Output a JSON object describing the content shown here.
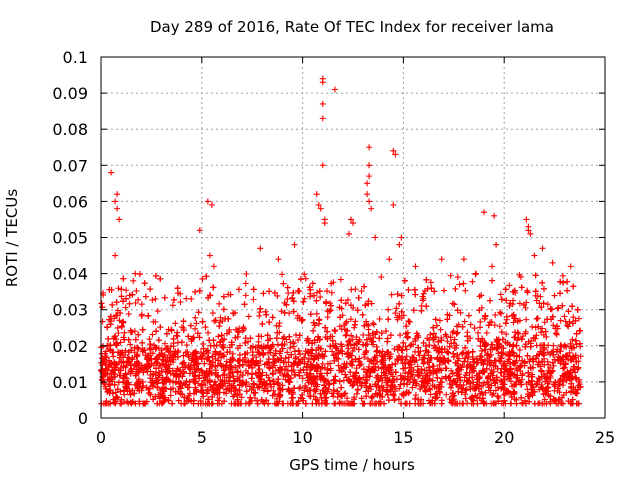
{
  "chart_data": {
    "type": "scatter",
    "title": "Day 289 of 2016, Rate Of TEC Index for receiver lama",
    "xlabel": "GPS time / hours",
    "ylabel": "ROTI / TECUs",
    "xlim": [
      0,
      25
    ],
    "ylim": [
      0,
      0.1
    ],
    "grid": true,
    "marker": "+",
    "color": "#ff0000",
    "xticks": [
      0,
      5,
      10,
      15,
      20,
      25
    ],
    "xtick_labels": [
      "0",
      "5",
      "10",
      "15",
      "20",
      "25"
    ],
    "yticks": [
      0,
      0.01,
      0.02,
      0.03,
      0.04,
      0.05,
      0.06,
      0.07,
      0.08,
      0.09,
      0.1
    ],
    "ytick_labels": [
      "0",
      "0.01",
      "0.02",
      "0.03",
      "0.04",
      "0.05",
      "0.06",
      "0.07",
      "0.08",
      "0.09",
      "0.1"
    ],
    "x_range_of_data": [
      0,
      23.8
    ],
    "dense_band": {
      "low": 0.004,
      "high": 0.03,
      "typical": 0.013
    },
    "outliers": [
      {
        "x": 0.5,
        "y": 0.068
      },
      {
        "x": 0.7,
        "y": 0.06
      },
      {
        "x": 0.8,
        "y": 0.062
      },
      {
        "x": 0.8,
        "y": 0.058
      },
      {
        "x": 0.9,
        "y": 0.055
      },
      {
        "x": 0.7,
        "y": 0.045
      },
      {
        "x": 1.7,
        "y": 0.04
      },
      {
        "x": 1.6,
        "y": 0.038
      },
      {
        "x": 4.9,
        "y": 0.052
      },
      {
        "x": 5.3,
        "y": 0.06
      },
      {
        "x": 5.5,
        "y": 0.059
      },
      {
        "x": 5.4,
        "y": 0.045
      },
      {
        "x": 5.6,
        "y": 0.042
      },
      {
        "x": 7.9,
        "y": 0.047
      },
      {
        "x": 8.8,
        "y": 0.044
      },
      {
        "x": 9.6,
        "y": 0.048
      },
      {
        "x": 10.7,
        "y": 0.062
      },
      {
        "x": 10.8,
        "y": 0.059
      },
      {
        "x": 10.9,
        "y": 0.058
      },
      {
        "x": 11.0,
        "y": 0.094
      },
      {
        "x": 11.0,
        "y": 0.093
      },
      {
        "x": 11.0,
        "y": 0.087
      },
      {
        "x": 11.0,
        "y": 0.083
      },
      {
        "x": 11.0,
        "y": 0.07
      },
      {
        "x": 11.1,
        "y": 0.055
      },
      {
        "x": 11.1,
        "y": 0.054
      },
      {
        "x": 11.6,
        "y": 0.091
      },
      {
        "x": 12.4,
        "y": 0.055
      },
      {
        "x": 12.5,
        "y": 0.054
      },
      {
        "x": 12.3,
        "y": 0.051
      },
      {
        "x": 13.3,
        "y": 0.075
      },
      {
        "x": 13.3,
        "y": 0.07
      },
      {
        "x": 13.3,
        "y": 0.067
      },
      {
        "x": 13.2,
        "y": 0.065
      },
      {
        "x": 13.2,
        "y": 0.062
      },
      {
        "x": 13.3,
        "y": 0.06
      },
      {
        "x": 13.4,
        "y": 0.058
      },
      {
        "x": 13.6,
        "y": 0.05
      },
      {
        "x": 14.5,
        "y": 0.074
      },
      {
        "x": 14.6,
        "y": 0.073
      },
      {
        "x": 14.5,
        "y": 0.059
      },
      {
        "x": 14.9,
        "y": 0.05
      },
      {
        "x": 14.8,
        "y": 0.048
      },
      {
        "x": 14.3,
        "y": 0.044
      },
      {
        "x": 15.6,
        "y": 0.042
      },
      {
        "x": 16.9,
        "y": 0.044
      },
      {
        "x": 18.0,
        "y": 0.044
      },
      {
        "x": 18.6,
        "y": 0.04
      },
      {
        "x": 19.0,
        "y": 0.057
      },
      {
        "x": 19.4,
        "y": 0.042
      },
      {
        "x": 19.5,
        "y": 0.056
      },
      {
        "x": 19.6,
        "y": 0.048
      },
      {
        "x": 21.1,
        "y": 0.055
      },
      {
        "x": 21.2,
        "y": 0.053
      },
      {
        "x": 21.2,
        "y": 0.052
      },
      {
        "x": 21.3,
        "y": 0.051
      },
      {
        "x": 21.5,
        "y": 0.045
      },
      {
        "x": 21.9,
        "y": 0.047
      },
      {
        "x": 22.4,
        "y": 0.043
      },
      {
        "x": 23.3,
        "y": 0.042
      }
    ]
  }
}
